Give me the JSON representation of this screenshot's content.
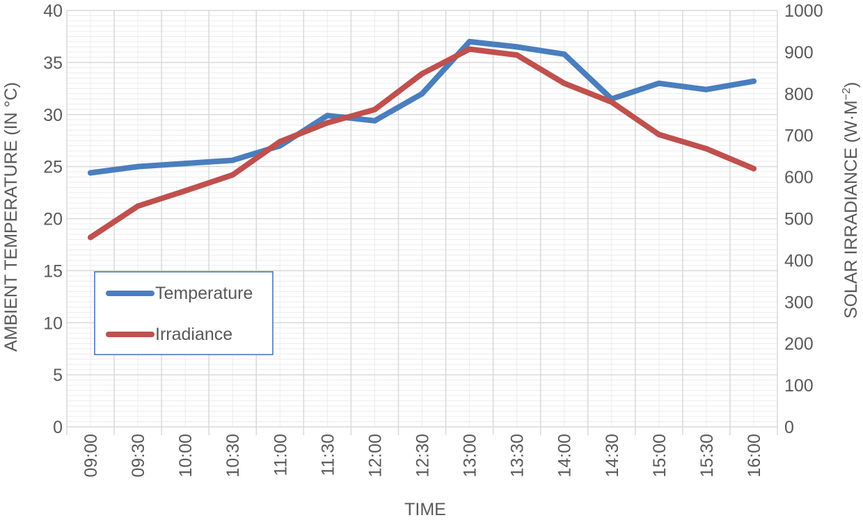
{
  "chart_data": {
    "type": "line",
    "title": "",
    "categories": [
      "09:00",
      "09:30",
      "10:00",
      "10:30",
      "11:00",
      "11:30",
      "12:00",
      "12:30",
      "13:00",
      "13:30",
      "14:00",
      "14:30",
      "15:00",
      "15:30",
      "16:00"
    ],
    "series": [
      {
        "name": "Temperature",
        "axis": "left",
        "color": "#4a7ebf",
        "values": [
          24.4,
          25.0,
          25.3,
          25.6,
          27.0,
          29.9,
          29.4,
          32.0,
          37.0,
          36.5,
          35.8,
          31.5,
          33.0,
          32.4,
          33.2
        ]
      },
      {
        "name": "Irradiance",
        "axis": "right",
        "color": "#c0504d",
        "values": [
          455,
          530,
          567,
          605,
          685,
          730,
          762,
          848,
          907,
          893,
          825,
          780,
          702,
          668,
          620
        ]
      }
    ],
    "xlabel": "TIME",
    "ylabel_left": "AMBIENT TEMPERATURE (IN °C)",
    "ylabel_right_base": "SOLAR IRRADIANCE (W·M",
    "ylabel_right_sup": "−2",
    "ylabel_right_end": ")",
    "ylim_left": [
      0,
      40
    ],
    "yticks_left": [
      0,
      5,
      10,
      15,
      20,
      25,
      30,
      35,
      40
    ],
    "ylim_right": [
      0,
      1000
    ],
    "yticks_right": [
      0,
      100,
      200,
      300,
      400,
      500,
      600,
      700,
      800,
      900,
      1000
    ],
    "grid": true,
    "legend": {
      "position": "left-middle",
      "entries": [
        "Temperature",
        "Irradiance"
      ]
    }
  }
}
